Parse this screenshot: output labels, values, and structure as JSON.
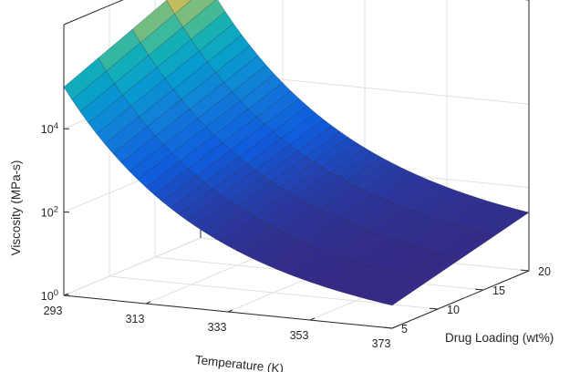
{
  "chart_data": {
    "type": "surface",
    "title": "",
    "xlabel": "Temperature (K)",
    "ylabel": "Drug Loading (wt%)",
    "zlabel": "Viscosity (MPa-s)",
    "x_ticks": [
      "293",
      "313",
      "333",
      "353",
      "373"
    ],
    "y_ticks": [
      "5",
      "10",
      "15",
      "20"
    ],
    "z_ticks": [
      {
        "base": "10",
        "exp": "0"
      },
      {
        "base": "10",
        "exp": "2"
      },
      {
        "base": "10",
        "exp": "4"
      }
    ],
    "xlim": [
      293,
      373
    ],
    "ylim": [
      5,
      20
    ],
    "zlim_log10": [
      0,
      6.5
    ],
    "z_scale": "log",
    "grid": true,
    "colormap": "parula",
    "edge_color": "#000000",
    "x": [
      293,
      373
    ],
    "y": [
      5,
      20
    ],
    "surface_log10_viscosity_corners": {
      "T293_DL5": 5.0,
      "T293_DL20": 6.4,
      "T373_DL5": 0.55,
      "T373_DL20": 1.4
    },
    "model": "log10 viscosity decays with temperature and rises with drug loading"
  }
}
